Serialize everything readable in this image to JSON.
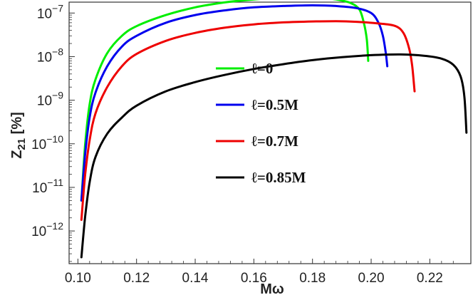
{
  "chart_data": {
    "type": "line",
    "title": "",
    "xlabel": "Mω",
    "ylabel_main": "Z",
    "ylabel_sub": "21",
    "ylabel_unit": " [%]",
    "yscale": "log",
    "xlim": [
      0.097,
      0.234
    ],
    "ylim_exp": [
      -12.75,
      -6.75
    ],
    "x_ticks": [
      0.1,
      0.12,
      0.14,
      0.16,
      0.18,
      0.2,
      0.22
    ],
    "x_tick_labels": [
      "0.10",
      "0.12",
      "0.14",
      "0.16",
      "0.18",
      "0.20",
      "0.22"
    ],
    "y_tick_exponents": [
      -12,
      -11,
      -10,
      -9,
      -8,
      -7
    ],
    "y_tick_base": "10",
    "y_tick_exp_labels": [
      "−12",
      "−11",
      "−10",
      "−9",
      "−8",
      "−7"
    ],
    "grid": false,
    "legend_placement": "center-right",
    "series": [
      {
        "name": "ℓ=0",
        "color": "#00ee00",
        "points": [
          [
            0.1012,
            5e-12
          ],
          [
            0.1025,
            1e-10
          ],
          [
            0.104,
            8e-10
          ],
          [
            0.106,
            3e-09
          ],
          [
            0.11,
            1.2e-08
          ],
          [
            0.115,
            3e-08
          ],
          [
            0.12,
            5e-08
          ],
          [
            0.13,
            9e-08
          ],
          [
            0.14,
            1.35e-07
          ],
          [
            0.15,
            1.75e-07
          ],
          [
            0.16,
            2.05e-07
          ],
          [
            0.17,
            2.25e-07
          ],
          [
            0.176,
            2.3e-07
          ],
          [
            0.182,
            2.25e-07
          ],
          [
            0.188,
            2.05e-07
          ],
          [
            0.193,
            1.7e-07
          ],
          [
            0.196,
            1.2e-07
          ],
          [
            0.1975,
            6e-08
          ],
          [
            0.1985,
            2.5e-08
          ],
          [
            0.199,
            8e-09
          ]
        ]
      },
      {
        "name": "ℓ=0.5M",
        "color": "#0000ee",
        "points": [
          [
            0.1012,
            5e-12
          ],
          [
            0.1025,
            6e-11
          ],
          [
            0.104,
            4e-10
          ],
          [
            0.106,
            1.5e-09
          ],
          [
            0.11,
            6e-09
          ],
          [
            0.115,
            1.7e-08
          ],
          [
            0.12,
            3e-08
          ],
          [
            0.13,
            6e-08
          ],
          [
            0.14,
            9e-08
          ],
          [
            0.15,
            1.15e-07
          ],
          [
            0.16,
            1.35e-07
          ],
          [
            0.17,
            1.45e-07
          ],
          [
            0.18,
            1.5e-07
          ],
          [
            0.188,
            1.45e-07
          ],
          [
            0.195,
            1.3e-07
          ],
          [
            0.2,
            1e-07
          ],
          [
            0.2025,
            6e-08
          ],
          [
            0.204,
            3e-08
          ],
          [
            0.205,
            1.2e-08
          ],
          [
            0.2055,
            6e-09
          ]
        ]
      },
      {
        "name": "ℓ=0.7M",
        "color": "#ee0000",
        "points": [
          [
            0.1012,
            1.8e-12
          ],
          [
            0.1025,
            2e-11
          ],
          [
            0.104,
            1.2e-10
          ],
          [
            0.106,
            5e-10
          ],
          [
            0.11,
            2e-09
          ],
          [
            0.115,
            6e-09
          ],
          [
            0.12,
            1.15e-08
          ],
          [
            0.13,
            2.3e-08
          ],
          [
            0.14,
            3.5e-08
          ],
          [
            0.15,
            4.6e-08
          ],
          [
            0.16,
            5.5e-08
          ],
          [
            0.17,
            6.1e-08
          ],
          [
            0.18,
            6.4e-08
          ],
          [
            0.188,
            6.5e-08
          ],
          [
            0.195,
            6.3e-08
          ],
          [
            0.202,
            5.8e-08
          ],
          [
            0.208,
            5.1e-08
          ],
          [
            0.211,
            3.5e-08
          ],
          [
            0.213,
            1.5e-08
          ],
          [
            0.214,
            6e-09
          ],
          [
            0.2148,
            1.6e-09
          ]
        ]
      },
      {
        "name": "ℓ=0.85M",
        "color": "#000000",
        "points": [
          [
            0.1012,
            2.5e-13
          ],
          [
            0.1025,
            2.2e-12
          ],
          [
            0.104,
            1.3e-11
          ],
          [
            0.106,
            5e-11
          ],
          [
            0.11,
            1.7e-10
          ],
          [
            0.115,
            4e-10
          ],
          [
            0.12,
            7.5e-10
          ],
          [
            0.13,
            1.6e-09
          ],
          [
            0.14,
            2.6e-09
          ],
          [
            0.15,
            3.8e-09
          ],
          [
            0.16,
            5.2e-09
          ],
          [
            0.17,
            6.7e-09
          ],
          [
            0.18,
            8.3e-09
          ],
          [
            0.19,
            9.7e-09
          ],
          [
            0.2,
            1.08e-08
          ],
          [
            0.21,
            1.12e-08
          ],
          [
            0.218,
            1.05e-08
          ],
          [
            0.224,
            9e-09
          ],
          [
            0.228,
            6.5e-09
          ],
          [
            0.2305,
            3.5e-09
          ],
          [
            0.2318,
            1.2e-09
          ],
          [
            0.2325,
            1.8e-10
          ]
        ]
      }
    ]
  }
}
